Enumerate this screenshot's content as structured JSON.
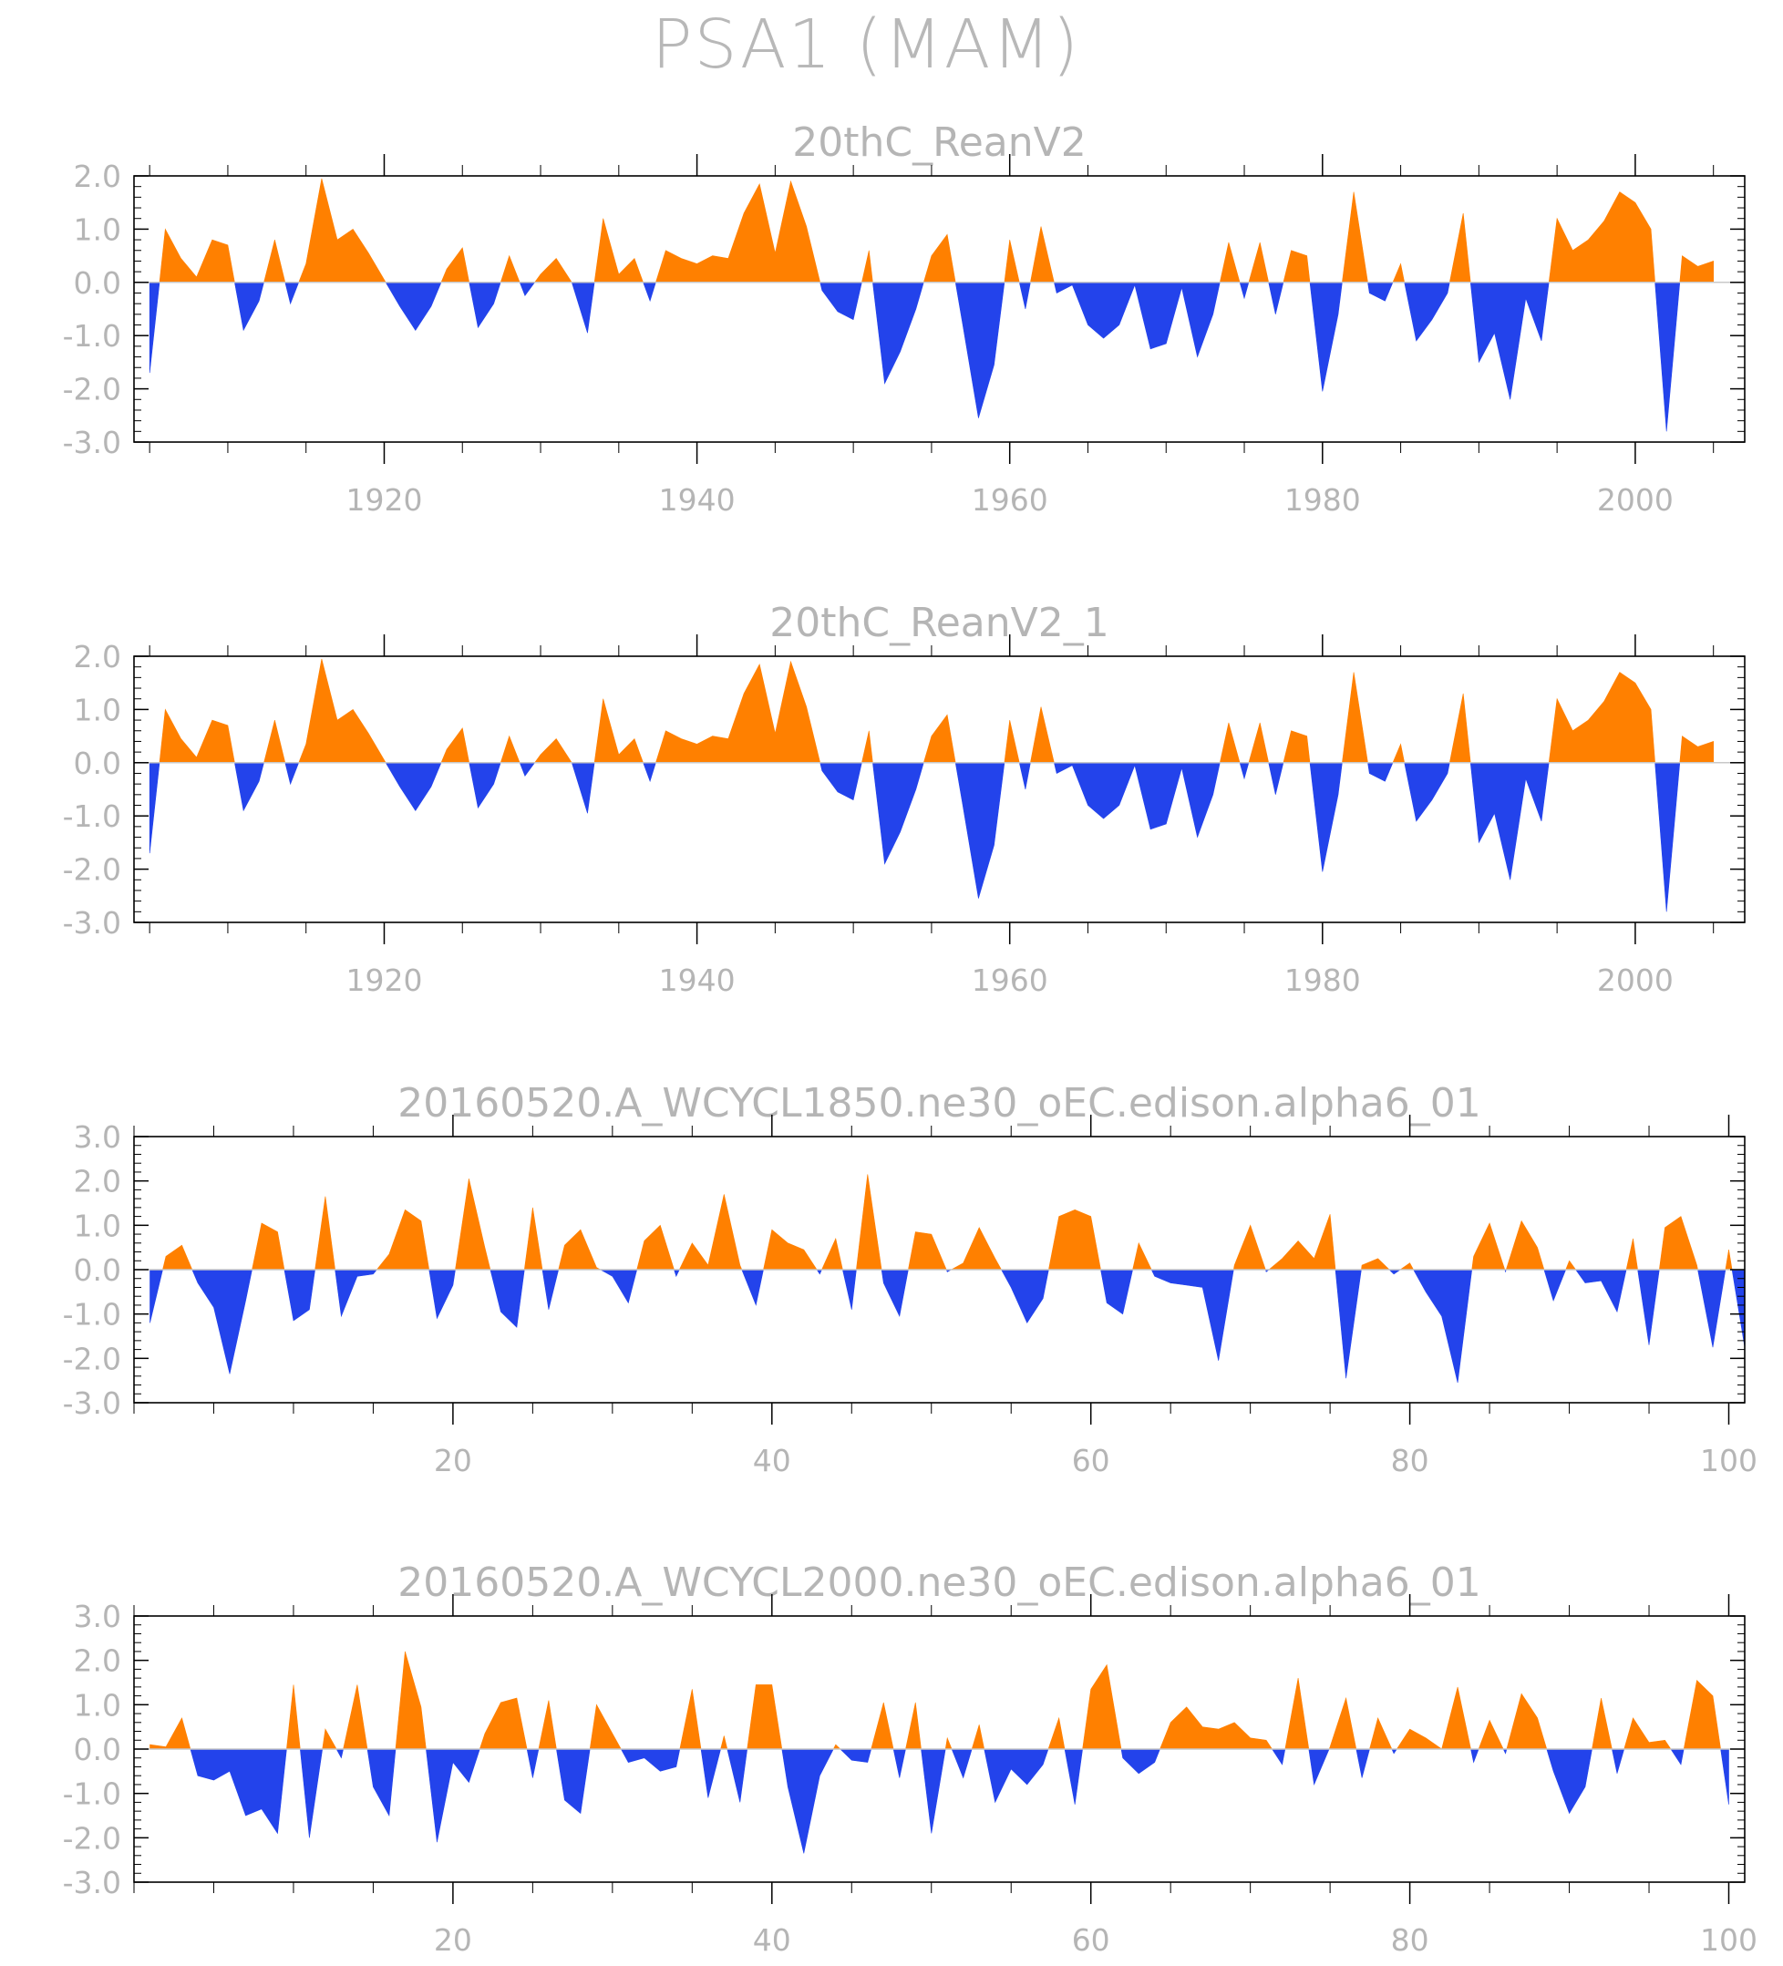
{
  "figure": {
    "title": "PSA1 (MAM)"
  },
  "colors": {
    "positive": "#ff8000",
    "negative": "#2343eb",
    "axis": "#000000",
    "text": "#b5b5b5"
  },
  "chart_data": [
    {
      "type": "area",
      "title": "20thC_ReanV2",
      "x_start": 1905,
      "xlim": [
        1904,
        2007
      ],
      "xticks": [
        1920,
        1940,
        1960,
        1980,
        2000
      ],
      "ylim": [
        -3.0,
        2.0
      ],
      "yticks": [
        "2.0",
        "1.0",
        "0.0",
        "-1.0",
        "-2.0",
        "-3.0"
      ],
      "values": [
        -1.7,
        1.0,
        0.45,
        0.1,
        0.8,
        0.7,
        -0.9,
        -0.35,
        0.8,
        -0.4,
        0.35,
        1.95,
        0.8,
        1.0,
        0.55,
        0.05,
        -0.45,
        -0.9,
        -0.45,
        0.25,
        0.65,
        -0.85,
        -0.4,
        0.5,
        -0.25,
        0.15,
        0.45,
        0.0,
        -0.95,
        1.2,
        0.15,
        0.45,
        -0.35,
        0.6,
        0.45,
        0.35,
        0.5,
        0.45,
        1.3,
        1.85,
        0.55,
        1.9,
        1.05,
        -0.15,
        -0.55,
        -0.7,
        0.6,
        -1.9,
        -1.3,
        -0.5,
        0.5,
        0.9,
        -0.8,
        -2.55,
        -1.55,
        0.8,
        -0.5,
        1.05,
        -0.2,
        -0.05,
        -0.8,
        -1.05,
        -0.8,
        -0.05,
        -1.25,
        -1.15,
        -0.1,
        -1.4,
        -0.6,
        0.75,
        -0.3,
        0.75,
        -0.6,
        0.6,
        0.5,
        -2.05,
        -0.6,
        1.7,
        -0.2,
        -0.35,
        0.35,
        -1.1,
        -0.7,
        -0.2,
        1.3,
        -1.5,
        -0.95,
        -2.2,
        -0.3,
        -1.1,
        1.2,
        0.6,
        0.8,
        1.15,
        1.7,
        1.5,
        1.0,
        -2.8,
        0.5,
        0.3,
        0.4
      ]
    },
    {
      "type": "area",
      "title": "20thC_ReanV2_1",
      "x_start": 1905,
      "xlim": [
        1904,
        2007
      ],
      "xticks": [
        1920,
        1940,
        1960,
        1980,
        2000
      ],
      "ylim": [
        -3.0,
        2.0
      ],
      "yticks": [
        "2.0",
        "1.0",
        "0.0",
        "-1.0",
        "-2.0",
        "-3.0"
      ],
      "values": [
        -1.7,
        1.0,
        0.45,
        0.1,
        0.8,
        0.7,
        -0.9,
        -0.35,
        0.8,
        -0.4,
        0.35,
        1.95,
        0.8,
        1.0,
        0.55,
        0.05,
        -0.45,
        -0.9,
        -0.45,
        0.25,
        0.65,
        -0.85,
        -0.4,
        0.5,
        -0.25,
        0.15,
        0.45,
        0.0,
        -0.95,
        1.2,
        0.15,
        0.45,
        -0.35,
        0.6,
        0.45,
        0.35,
        0.5,
        0.45,
        1.3,
        1.85,
        0.55,
        1.9,
        1.05,
        -0.15,
        -0.55,
        -0.7,
        0.6,
        -1.9,
        -1.3,
        -0.5,
        0.5,
        0.9,
        -0.8,
        -2.55,
        -1.55,
        0.8,
        -0.5,
        1.05,
        -0.2,
        -0.05,
        -0.8,
        -1.05,
        -0.8,
        -0.05,
        -1.25,
        -1.15,
        -0.1,
        -1.4,
        -0.6,
        0.75,
        -0.3,
        0.75,
        -0.6,
        0.6,
        0.5,
        -2.05,
        -0.6,
        1.7,
        -0.2,
        -0.35,
        0.35,
        -1.1,
        -0.7,
        -0.2,
        1.3,
        -1.5,
        -0.95,
        -2.2,
        -0.3,
        -1.1,
        1.2,
        0.6,
        0.8,
        1.15,
        1.7,
        1.5,
        1.0,
        -2.8,
        0.5,
        0.3,
        0.4
      ]
    },
    {
      "type": "area",
      "title": "20160520.A_WCYCL1850.ne30_oEC.edison.alpha6_01",
      "x_start": 1,
      "xlim": [
        0,
        101
      ],
      "xticks": [
        20,
        40,
        60,
        80,
        100
      ],
      "ylim": [
        -3.0,
        3.0
      ],
      "yticks": [
        "3.0",
        "2.0",
        "1.0",
        "0.0",
        "-1.0",
        "-2.0",
        "-3.0"
      ],
      "values": [
        -1.2,
        0.3,
        0.55,
        -0.3,
        -0.85,
        -2.35,
        -0.7,
        1.05,
        0.85,
        -1.15,
        -0.9,
        1.65,
        -1.05,
        -0.15,
        -0.1,
        0.35,
        1.35,
        1.1,
        -1.1,
        -0.35,
        2.05,
        0.5,
        -0.95,
        -1.3,
        1.4,
        -0.9,
        0.55,
        0.9,
        0.05,
        -0.15,
        -0.75,
        0.65,
        1.0,
        -0.15,
        0.6,
        0.1,
        1.7,
        0.1,
        -0.8,
        0.9,
        0.6,
        0.45,
        -0.1,
        0.7,
        -0.9,
        2.15,
        -0.3,
        -1.05,
        0.85,
        0.8,
        -0.05,
        0.15,
        0.95,
        0.25,
        -0.4,
        -1.2,
        -0.65,
        1.2,
        1.35,
        1.2,
        -0.75,
        -1.0,
        0.6,
        -0.15,
        -0.3,
        -0.35,
        -0.4,
        -2.05,
        0.1,
        1.0,
        -0.05,
        0.25,
        0.65,
        0.25,
        1.25,
        -2.45,
        0.1,
        0.25,
        -0.1,
        0.15,
        -0.5,
        -1.05,
        -2.55,
        0.3,
        1.05,
        -0.05,
        1.1,
        0.5,
        -0.7,
        0.2,
        -0.3,
        -0.25,
        -0.95,
        0.7,
        -1.7,
        0.95,
        1.2,
        0.1,
        -1.75,
        0.45,
        -1.75
      ]
    },
    {
      "type": "area",
      "title": "20160520.A_WCYCL2000.ne30_oEC.edison.alpha6_01",
      "x_start": 1,
      "xlim": [
        0,
        101
      ],
      "xticks": [
        20,
        40,
        60,
        80,
        100
      ],
      "ylim": [
        -3.0,
        3.0
      ],
      "yticks": [
        "3.0",
        "2.0",
        "1.0",
        "0.0",
        "-1.0",
        "-2.0",
        "-3.0"
      ],
      "values": [
        0.1,
        0.05,
        0.7,
        -0.6,
        -0.7,
        -0.5,
        -1.5,
        -1.35,
        -1.9,
        1.45,
        -2.0,
        0.45,
        -0.2,
        1.45,
        -0.85,
        -1.5,
        2.2,
        0.95,
        -2.1,
        -0.3,
        -0.75,
        0.35,
        1.05,
        1.15,
        -0.65,
        1.1,
        -1.15,
        -1.45,
        1.0,
        0.35,
        -0.3,
        -0.2,
        -0.5,
        -0.4,
        1.35,
        -1.1,
        0.3,
        -1.2,
        1.45,
        1.45,
        -0.85,
        -2.35,
        -0.6,
        0.1,
        -0.25,
        -0.3,
        1.05,
        -0.65,
        1.05,
        -1.9,
        0.25,
        -0.65,
        0.55,
        -1.2,
        -0.45,
        -0.8,
        -0.35,
        0.7,
        -1.25,
        1.35,
        1.9,
        -0.2,
        -0.55,
        -0.3,
        0.6,
        0.95,
        0.5,
        0.45,
        0.6,
        0.25,
        0.2,
        -0.35,
        1.6,
        -0.8,
        0.05,
        1.15,
        -0.65,
        0.7,
        -0.1,
        0.45,
        0.25,
        0.0,
        1.4,
        -0.3,
        0.65,
        -0.1,
        1.25,
        0.7,
        -0.5,
        -1.45,
        -0.85,
        1.15,
        -0.55,
        0.7,
        0.15,
        0.2,
        -0.35,
        1.55,
        1.2,
        -1.25
      ]
    }
  ]
}
